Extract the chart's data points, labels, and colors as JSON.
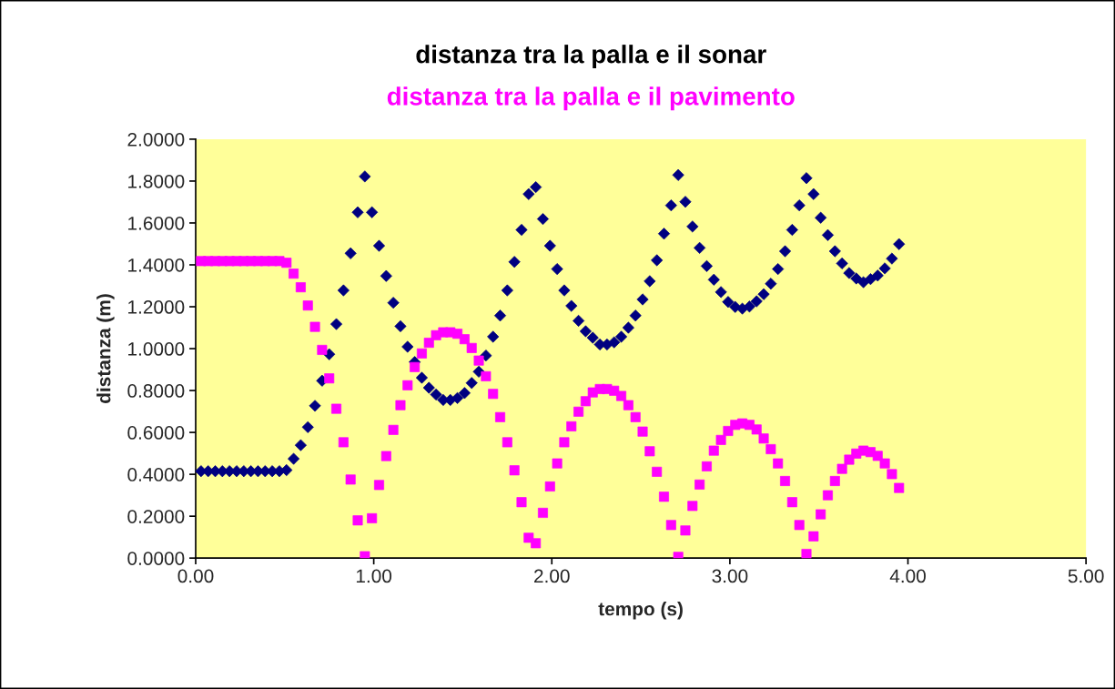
{
  "chart_data": {
    "type": "scatter",
    "title": "distanza tra la palla e il sonar",
    "subtitle": "distanza tra la palla e il pavimento",
    "xlabel": "tempo (s)",
    "ylabel": "distanza (m)",
    "x": [
      0.03,
      0.07,
      0.11,
      0.15,
      0.19,
      0.23,
      0.27,
      0.31,
      0.35,
      0.39,
      0.43,
      0.47,
      0.51,
      0.55,
      0.59,
      0.63,
      0.67,
      0.71,
      0.75,
      0.79,
      0.83,
      0.87,
      0.91,
      0.95,
      0.99,
      1.03,
      1.07,
      1.11,
      1.15,
      1.19,
      1.23,
      1.27,
      1.31,
      1.35,
      1.39,
      1.43,
      1.47,
      1.51,
      1.55,
      1.59,
      1.63,
      1.67,
      1.71,
      1.75,
      1.79,
      1.83,
      1.87,
      1.91,
      1.95,
      1.99,
      2.03,
      2.07,
      2.11,
      2.15,
      2.19,
      2.23,
      2.27,
      2.31,
      2.35,
      2.39,
      2.43,
      2.47,
      2.51,
      2.55,
      2.59,
      2.63,
      2.67,
      2.71,
      2.75,
      2.79,
      2.83,
      2.87,
      2.91,
      2.95,
      2.99,
      3.03,
      3.07,
      3.11,
      3.15,
      3.19,
      3.23,
      3.27,
      3.31,
      3.35,
      3.39,
      3.43,
      3.47,
      3.51,
      3.55,
      3.59,
      3.63,
      3.67,
      3.71,
      3.75,
      3.79,
      3.83,
      3.87,
      3.91,
      3.95
    ],
    "series": [
      {
        "color": "#000080",
        "marker": "diamond",
        "values": [
          0.415,
          0.415,
          0.415,
          0.415,
          0.415,
          0.415,
          0.415,
          0.415,
          0.415,
          0.415,
          0.415,
          0.415,
          0.42,
          0.474,
          0.539,
          0.625,
          0.727,
          0.847,
          0.973,
          1.117,
          1.278,
          1.455,
          1.651,
          1.822,
          1.651,
          1.491,
          1.347,
          1.219,
          1.107,
          1.009,
          0.936,
          0.861,
          0.813,
          0.781,
          0.755,
          0.755,
          0.764,
          0.788,
          0.836,
          0.89,
          0.967,
          1.057,
          1.158,
          1.278,
          1.414,
          1.567,
          1.738,
          1.771,
          1.619,
          1.491,
          1.38,
          1.278,
          1.204,
          1.133,
          1.083,
          1.052,
          1.02,
          1.02,
          1.03,
          1.057,
          1.1,
          1.158,
          1.235,
          1.322,
          1.422,
          1.549,
          1.684,
          1.829,
          1.701,
          1.583,
          1.481,
          1.394,
          1.329,
          1.27,
          1.223,
          1.199,
          1.191,
          1.201,
          1.226,
          1.26,
          1.31,
          1.38,
          1.465,
          1.567,
          1.684,
          1.814,
          1.738,
          1.625,
          1.542,
          1.465,
          1.407,
          1.361,
          1.335,
          1.317,
          1.332,
          1.349,
          1.383,
          1.43,
          1.499
        ]
      },
      {
        "color": "#ff00ff",
        "marker": "square",
        "values": [
          1.418,
          1.418,
          1.418,
          1.418,
          1.418,
          1.418,
          1.418,
          1.418,
          1.418,
          1.418,
          1.418,
          1.418,
          1.41,
          1.358,
          1.293,
          1.206,
          1.104,
          0.994,
          0.858,
          0.713,
          0.553,
          0.375,
          0.18,
          0.009,
          0.19,
          0.349,
          0.487,
          0.612,
          0.73,
          0.825,
          0.912,
          0.977,
          1.028,
          1.064,
          1.078,
          1.078,
          1.071,
          1.045,
          1.003,
          0.943,
          0.868,
          0.784,
          0.673,
          0.553,
          0.419,
          0.267,
          0.097,
          0.071,
          0.216,
          0.342,
          0.452,
          0.553,
          0.629,
          0.699,
          0.749,
          0.791,
          0.807,
          0.807,
          0.799,
          0.774,
          0.73,
          0.673,
          0.604,
          0.51,
          0.412,
          0.293,
          0.158,
          0.006,
          0.132,
          0.249,
          0.351,
          0.438,
          0.513,
          0.564,
          0.607,
          0.636,
          0.643,
          0.636,
          0.614,
          0.571,
          0.52,
          0.452,
          0.368,
          0.267,
          0.158,
          0.02,
          0.104,
          0.209,
          0.3,
          0.368,
          0.426,
          0.47,
          0.499,
          0.513,
          0.506,
          0.488,
          0.452,
          0.401,
          0.335
        ]
      }
    ],
    "xlim": [
      0,
      5
    ],
    "xticks": [
      {
        "value": 0,
        "label": "0.00"
      },
      {
        "value": 1,
        "label": "1.00"
      },
      {
        "value": 2,
        "label": "2.00"
      },
      {
        "value": 3,
        "label": "3.00"
      },
      {
        "value": 4,
        "label": "4.00"
      },
      {
        "value": 5,
        "label": "5.00"
      }
    ],
    "ylim": [
      0,
      2
    ],
    "yticks": [
      {
        "value": 0,
        "label": "0.0000"
      },
      {
        "value": 0.2,
        "label": "0.2000"
      },
      {
        "value": 0.4,
        "label": "0.4000"
      },
      {
        "value": 0.6,
        "label": "0.6000"
      },
      {
        "value": 0.8,
        "label": "0.8000"
      },
      {
        "value": 1.0,
        "label": "1.0000"
      },
      {
        "value": 1.2,
        "label": "1.2000"
      },
      {
        "value": 1.4,
        "label": "1.4000"
      },
      {
        "value": 1.6,
        "label": "1.6000"
      },
      {
        "value": 1.8,
        "label": "1.8000"
      },
      {
        "value": 2.0,
        "label": "2.0000"
      }
    ],
    "grid": false,
    "legend": false
  }
}
